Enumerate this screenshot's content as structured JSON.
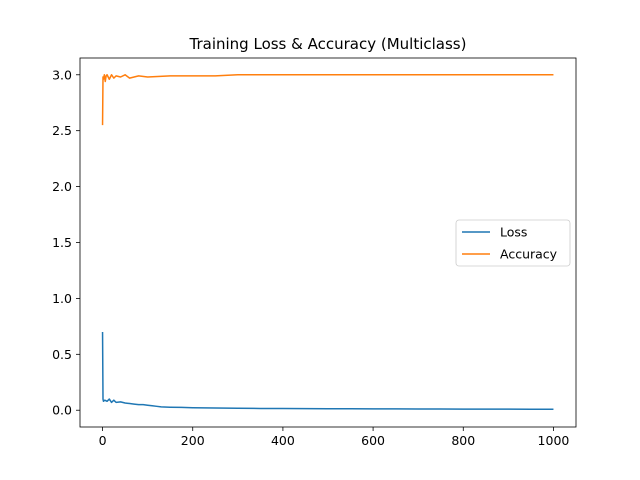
{
  "chart_data": {
    "type": "line",
    "title": "Training Loss & Accuracy (Multiclass)",
    "xlabel": "",
    "ylabel": "",
    "xlim": [
      -50,
      1050
    ],
    "ylim": [
      -0.15,
      3.15
    ],
    "x_ticks": [
      0,
      200,
      400,
      600,
      800,
      1000
    ],
    "y_ticks": [
      0.0,
      0.5,
      1.0,
      1.5,
      2.0,
      2.5,
      3.0
    ],
    "x_tick_labels": [
      "0",
      "200",
      "400",
      "600",
      "800",
      "1000"
    ],
    "y_tick_labels": [
      "0.0",
      "0.5",
      "1.0",
      "1.5",
      "2.0",
      "2.5",
      "3.0"
    ],
    "grid": false,
    "legend_position": "center-right",
    "series": [
      {
        "name": "Loss",
        "color": "#1f77b4",
        "x": [
          0,
          1,
          2,
          5,
          10,
          15,
          20,
          25,
          30,
          40,
          50,
          60,
          70,
          80,
          90,
          100,
          110,
          120,
          130,
          150,
          175,
          200,
          250,
          300,
          350,
          400,
          450,
          500,
          550,
          600,
          650,
          700,
          750,
          800,
          850,
          900,
          950,
          1000
        ],
        "values": [
          0.7,
          0.1,
          0.08,
          0.09,
          0.08,
          0.1,
          0.07,
          0.09,
          0.07,
          0.075,
          0.065,
          0.06,
          0.055,
          0.05,
          0.05,
          0.045,
          0.04,
          0.035,
          0.03,
          0.027,
          0.025,
          0.022,
          0.02,
          0.018,
          0.016,
          0.015,
          0.014,
          0.013,
          0.013,
          0.012,
          0.012,
          0.011,
          0.011,
          0.01,
          0.01,
          0.01,
          0.009,
          0.009
        ]
      },
      {
        "name": "Accuracy",
        "color": "#ff7f0e",
        "x": [
          0,
          1,
          2,
          4,
          6,
          8,
          10,
          15,
          20,
          25,
          30,
          40,
          50,
          60,
          80,
          100,
          150,
          200,
          250,
          300,
          400,
          500,
          600,
          700,
          800,
          900,
          1000
        ],
        "values": [
          2.55,
          2.98,
          2.96,
          3.0,
          2.94,
          2.99,
          3.0,
          2.96,
          3.0,
          2.97,
          2.99,
          2.98,
          3.0,
          2.97,
          2.99,
          2.98,
          2.99,
          2.99,
          2.99,
          3.0,
          3.0,
          3.0,
          3.0,
          3.0,
          3.0,
          3.0,
          3.0
        ]
      }
    ]
  }
}
